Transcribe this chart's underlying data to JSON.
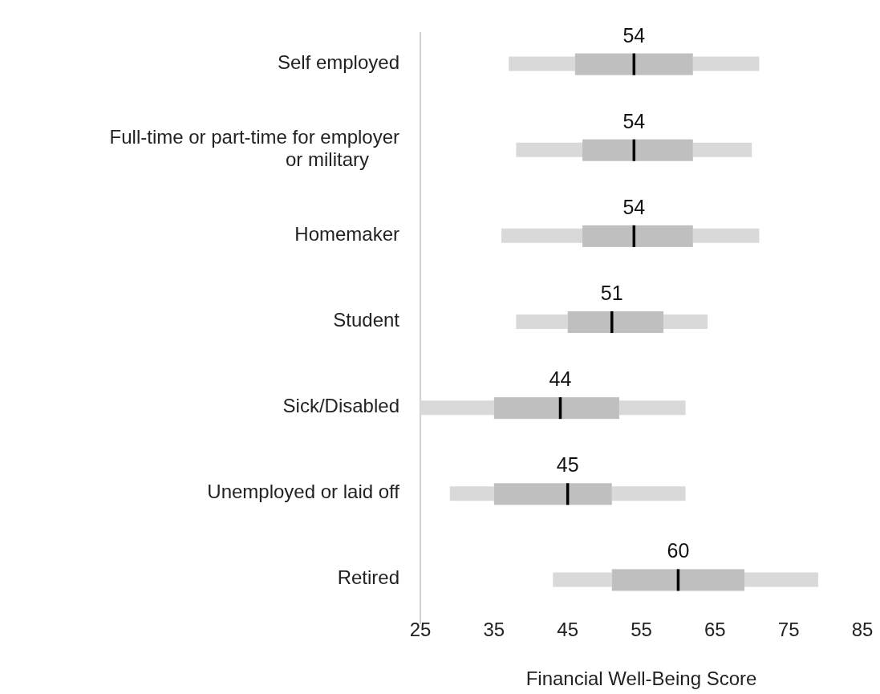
{
  "chart_data": {
    "type": "box",
    "orientation": "horizontal",
    "xlabel": "Financial Well-Being Score",
    "categories": [
      "Self employed",
      "Full-time or part-time for employer or military",
      "Homemaker",
      "Student",
      "Sick/Disabled",
      "Unemployed or laid off",
      "Retired"
    ],
    "color": "#bfbfbf",
    "boxes": [
      {
        "low": 37,
        "q1": 46,
        "median": 54,
        "q3": 62,
        "high": 71
      },
      {
        "low": 38,
        "q1": 47,
        "median": 54,
        "q3": 62,
        "high": 70
      },
      {
        "low": 36,
        "q1": 47,
        "median": 54,
        "q3": 62,
        "high": 71
      },
      {
        "low": 38,
        "q1": 45,
        "median": 51,
        "q3": 58,
        "high": 64
      },
      {
        "low": 25,
        "q1": 35,
        "median": 44,
        "q3": 52,
        "high": 61
      },
      {
        "low": 29,
        "q1": 35,
        "median": 45,
        "q3": 51,
        "high": 61
      },
      {
        "low": 43,
        "q1": 51,
        "median": 60,
        "q3": 69,
        "high": 79
      }
    ],
    "annotations": [
      {
        "text": "54",
        "x": 54,
        "y": "Self employed"
      },
      {
        "text": "54",
        "x": 54,
        "y": "Full-time or part-time for employer or military"
      },
      {
        "text": "54",
        "x": 54,
        "y": "Homemaker"
      },
      {
        "text": "51",
        "x": 51,
        "y": "Student"
      },
      {
        "text": "44",
        "x": 44,
        "y": "Sick/Disabled"
      },
      {
        "text": "45",
        "x": 45,
        "y": "Unemployed or laid off"
      },
      {
        "text": "60",
        "x": 60,
        "y": "Retired"
      }
    ],
    "xlim": [
      25,
      85
    ],
    "xticks": [
      25,
      35,
      45,
      55,
      65,
      75,
      85
    ]
  }
}
